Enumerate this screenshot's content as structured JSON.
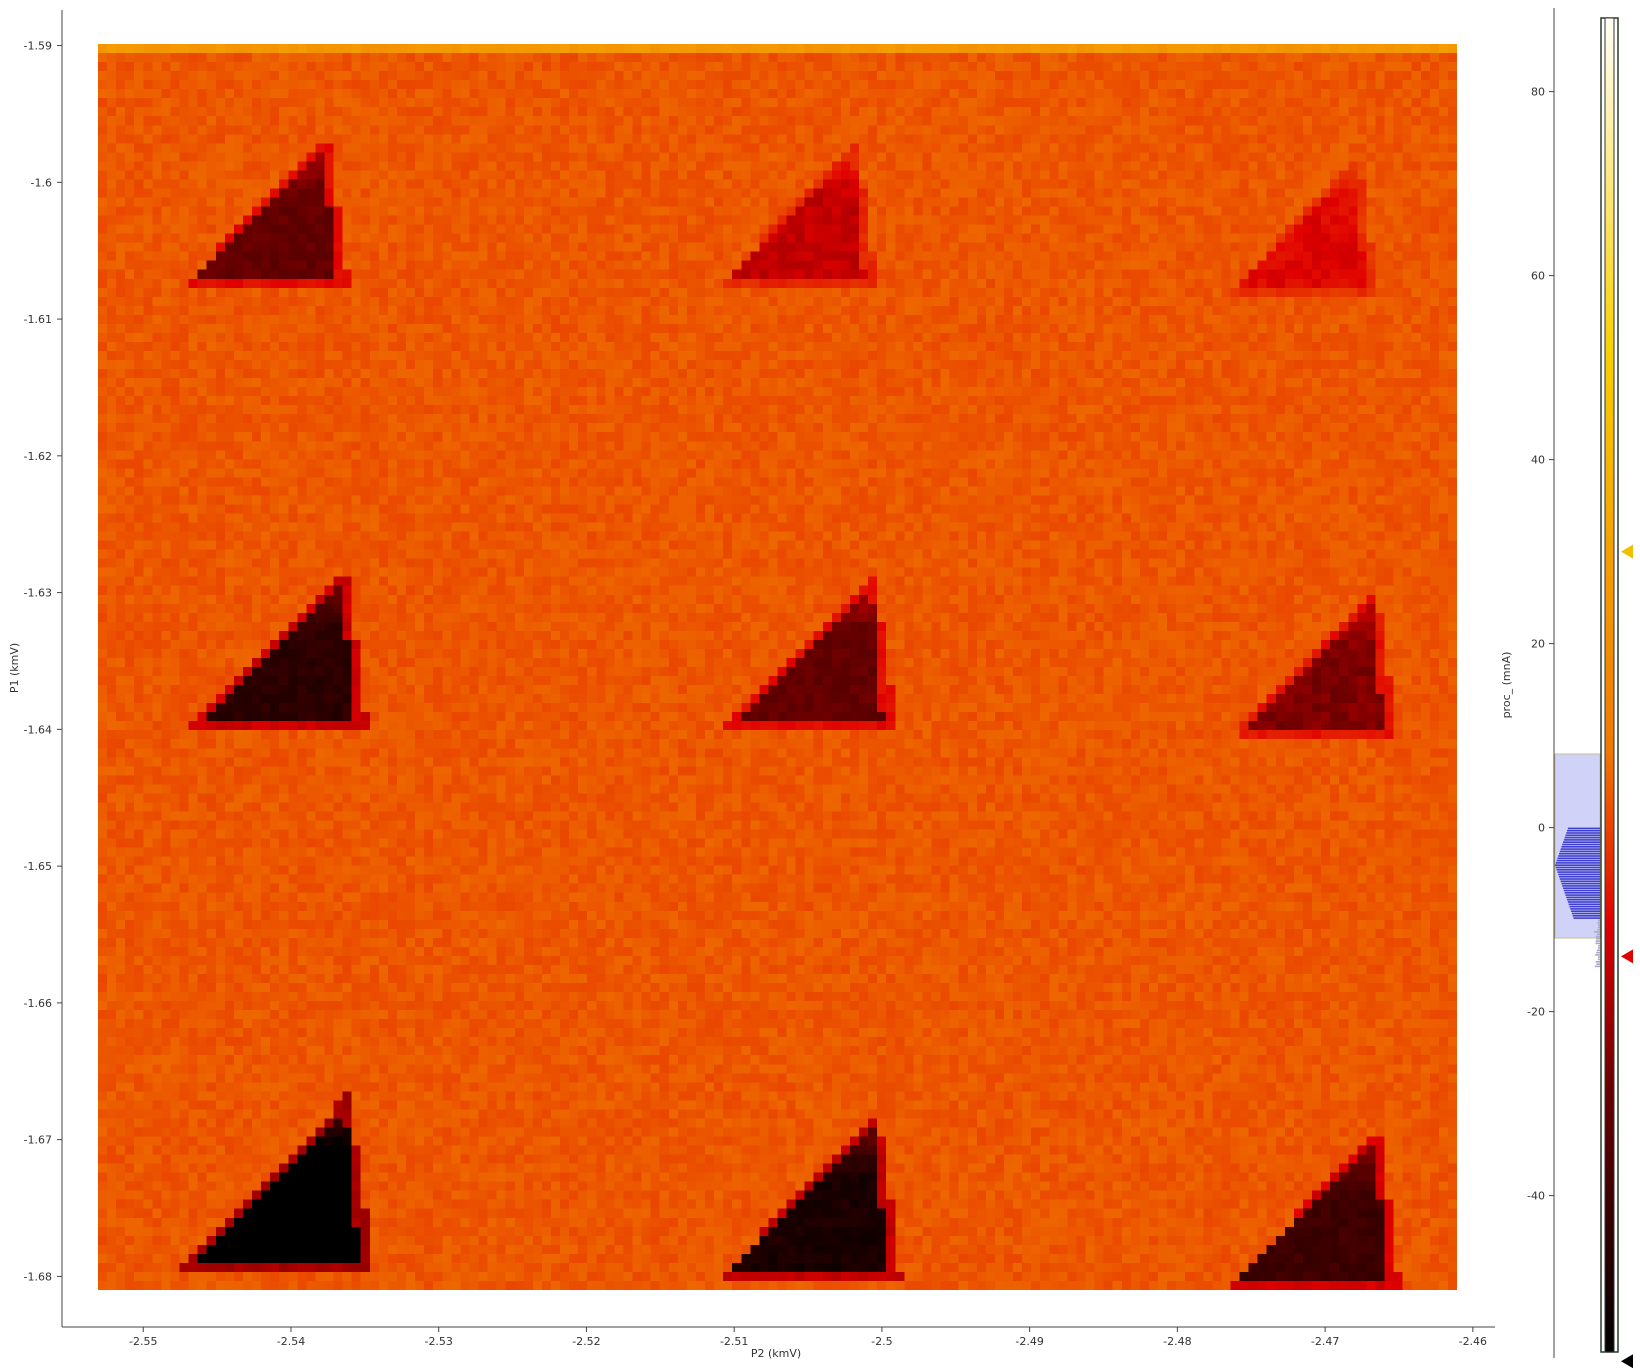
{
  "chart_data": {
    "type": "heatmap",
    "title": "",
    "xlabel": "P2 (kmV)",
    "ylabel": "P1 (kmV)",
    "xlim": [
      -2.5555,
      -2.4585
    ],
    "ylim": [
      -1.6837,
      -1.5874
    ],
    "x_ticks": [
      "-2.55",
      "-2.54",
      "-2.53",
      "-2.52",
      "-2.51",
      "-2.5",
      "-2.49",
      "-2.48",
      "-2.47",
      "-2.46"
    ],
    "x_tick_values": [
      -2.55,
      -2.54,
      -2.53,
      -2.52,
      -2.51,
      -2.5,
      -2.49,
      -2.48,
      -2.47,
      -2.46
    ],
    "y_ticks": [
      "-1.59",
      "-1.6",
      "-1.61",
      "-1.62",
      "-1.63",
      "-1.64",
      "-1.65",
      "-1.66",
      "-1.67",
      "-1.68"
    ],
    "y_tick_values": [
      -1.59,
      -1.6,
      -1.61,
      -1.62,
      -1.63,
      -1.64,
      -1.65,
      -1.66,
      -1.67,
      -1.68
    ],
    "background_level_mnA": 3,
    "top_row_level_mnA": 25,
    "features": [
      {
        "shape": "triangle",
        "x_center": -2.5405,
        "y_center": -1.6035,
        "depth_mnA": -30
      },
      {
        "shape": "triangle",
        "x_center": -2.5045,
        "y_center": -1.6035,
        "depth_mnA": -15
      },
      {
        "shape": "triangle",
        "x_center": -2.4705,
        "y_center": -1.6045,
        "depth_mnA": -10
      },
      {
        "shape": "triangle",
        "x_center": -2.5395,
        "y_center": -1.6355,
        "depth_mnA": -45
      },
      {
        "shape": "triangle",
        "x_center": -2.5035,
        "y_center": -1.6355,
        "depth_mnA": -30
      },
      {
        "shape": "triangle",
        "x_center": -2.4695,
        "y_center": -1.6365,
        "depth_mnA": -25
      },
      {
        "shape": "triangle",
        "x_center": -2.5395,
        "y_center": -1.6745,
        "depth_mnA": -65
      },
      {
        "shape": "triangle",
        "x_center": -2.5035,
        "y_center": -1.6755,
        "depth_mnA": -50
      },
      {
        "shape": "triangle",
        "x_center": -2.4695,
        "y_center": -1.6765,
        "depth_mnA": -40
      }
    ],
    "colorbar": {
      "label": "proc_ (mnA)",
      "colormap": "black-red-orange-yellow-white",
      "range": [
        -57,
        88
      ],
      "ticks": [
        "80",
        "60",
        "40",
        "20",
        "0",
        "-20",
        "-40"
      ],
      "tick_values": [
        80,
        60,
        40,
        20,
        0,
        -20,
        -40
      ],
      "markers": [
        {
          "value": 30,
          "color": "#f0c000"
        },
        {
          "value": -14,
          "color": "#e00000"
        },
        {
          "value": -58,
          "color": "#000000"
        }
      ],
      "histogram_region": [
        -12,
        8
      ]
    }
  }
}
